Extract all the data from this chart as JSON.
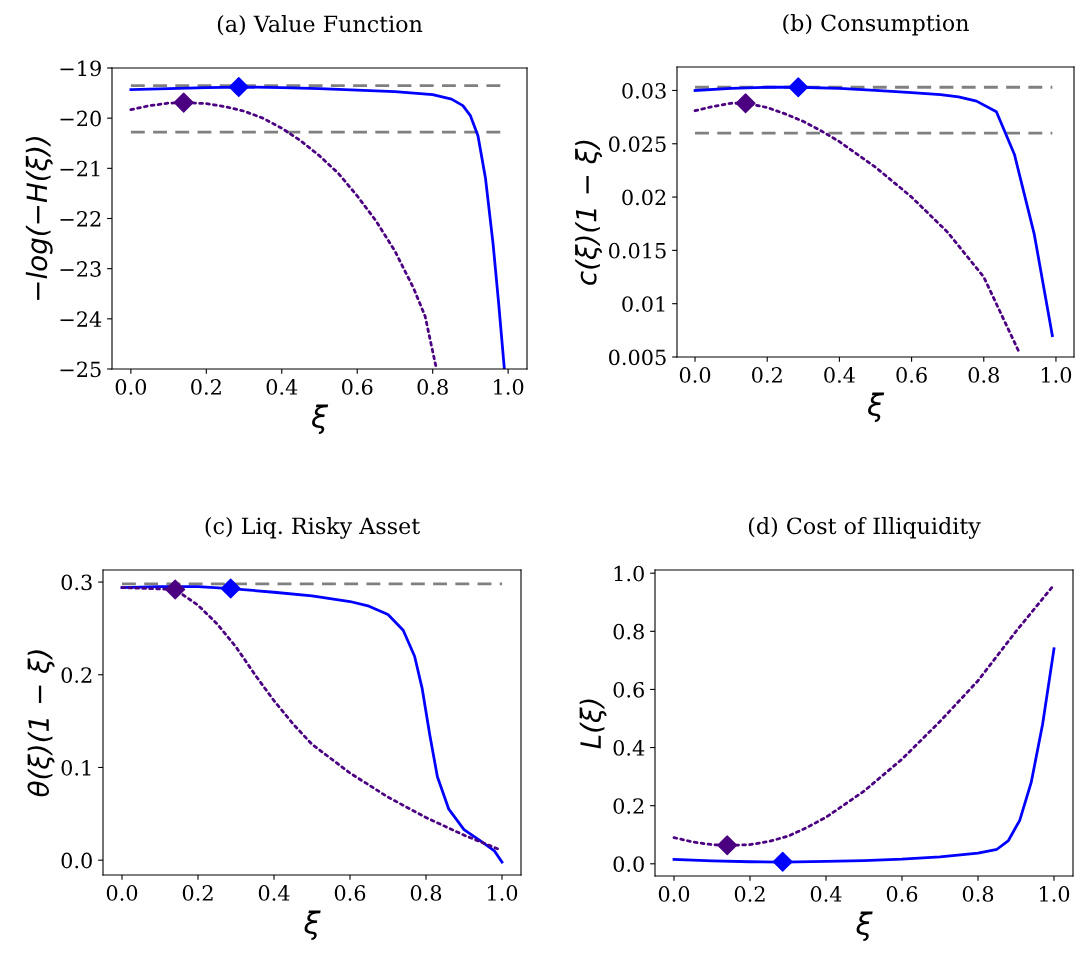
{
  "chart_data": [
    {
      "type": "line",
      "title": "(a) Value Function",
      "xlabel": "ξ",
      "ylabel": "−log(−H(ξ))",
      "xlim": [
        -0.05,
        1.05
      ],
      "ylim": [
        -25,
        -19
      ],
      "xticks": [
        {
          "value": 0,
          "label": "0.0"
        },
        {
          "value": 0.2,
          "label": "0.2"
        },
        {
          "value": 0.4,
          "label": "0.4"
        },
        {
          "value": 0.6,
          "label": "0.6"
        },
        {
          "value": 0.8,
          "label": "0.8"
        },
        {
          "value": 1,
          "label": "1.0"
        }
      ],
      "yticks": [
        {
          "value": -25,
          "label": "−25"
        },
        {
          "value": -24,
          "label": "−24"
        },
        {
          "value": -23,
          "label": "−23"
        },
        {
          "value": -22,
          "label": "−22"
        },
        {
          "value": -21,
          "label": "−21"
        },
        {
          "value": -20,
          "label": "−20"
        },
        {
          "value": -19,
          "label": "−19"
        }
      ],
      "ref_lines": [
        {
          "axis": "y",
          "value": -19.35,
          "color": "#808080",
          "line_style": "dashed"
        },
        {
          "axis": "y",
          "value": -20.28,
          "color": "#808080",
          "line_style": "dashed"
        }
      ],
      "series": [
        {
          "type": "line",
          "color": "#0000ff",
          "line_style": "solid",
          "x": [
            0,
            0.1,
            0.2,
            0.29,
            0.4,
            0.5,
            0.6,
            0.7,
            0.8,
            0.85,
            0.88,
            0.9,
            0.92,
            0.94,
            0.96,
            0.975,
            0.99
          ],
          "values": [
            -19.43,
            -19.41,
            -19.39,
            -19.38,
            -19.39,
            -19.41,
            -19.44,
            -19.47,
            -19.53,
            -19.62,
            -19.75,
            -19.95,
            -20.35,
            -21.2,
            -22.5,
            -23.7,
            -25.0
          ]
        },
        {
          "type": "line",
          "color": "#4b0082",
          "line_style": "dotted",
          "x": [
            0,
            0.05,
            0.1,
            0.15,
            0.2,
            0.25,
            0.3,
            0.35,
            0.4,
            0.45,
            0.5,
            0.55,
            0.6,
            0.65,
            0.7,
            0.75,
            0.78,
            0.81
          ],
          "values": [
            -19.83,
            -19.75,
            -19.7,
            -19.69,
            -19.71,
            -19.77,
            -19.86,
            -20.0,
            -20.2,
            -20.45,
            -20.75,
            -21.1,
            -21.55,
            -22.05,
            -22.65,
            -23.4,
            -23.95,
            -25.0
          ]
        },
        {
          "type": "scatter",
          "color": "#4b0082",
          "marker": "diamond",
          "x": [
            0.14
          ],
          "values": [
            -19.69
          ]
        },
        {
          "type": "scatter",
          "color": "#0000ff",
          "marker": "diamond",
          "x": [
            0.286
          ],
          "values": [
            -19.38
          ]
        }
      ]
    },
    {
      "type": "line",
      "title": "(b) Consumption",
      "xlabel": "ξ",
      "ylabel": "c(ξ)(1 − ξ)",
      "xlim": [
        -0.05,
        1.05
      ],
      "ylim": [
        0.005,
        0.0322
      ],
      "xticks": [
        {
          "value": 0,
          "label": "0.0"
        },
        {
          "value": 0.2,
          "label": "0.2"
        },
        {
          "value": 0.4,
          "label": "0.4"
        },
        {
          "value": 0.6,
          "label": "0.6"
        },
        {
          "value": 0.8,
          "label": "0.8"
        },
        {
          "value": 1,
          "label": "1.0"
        }
      ],
      "yticks": [
        0.005,
        0.01,
        0.015,
        0.02,
        0.025,
        0.03
      ],
      "ref_lines": [
        {
          "axis": "y",
          "value": 0.0303,
          "color": "#808080",
          "line_style": "dashed"
        },
        {
          "axis": "y",
          "value": 0.026,
          "color": "#808080",
          "line_style": "dashed"
        }
      ],
      "series": [
        {
          "type": "line",
          "color": "#0000ff",
          "line_style": "solid",
          "x": [
            0,
            0.1,
            0.2,
            0.286,
            0.4,
            0.5,
            0.6,
            0.68,
            0.73,
            0.78,
            0.835,
            0.885,
            0.94,
            0.99
          ],
          "values": [
            0.03,
            0.0302,
            0.0303,
            0.0303,
            0.0302,
            0.03,
            0.0298,
            0.0296,
            0.0294,
            0.029,
            0.028,
            0.024,
            0.0165,
            0.007
          ]
        },
        {
          "type": "line",
          "color": "#4b0082",
          "line_style": "dotted",
          "x": [
            0,
            0.05,
            0.1,
            0.14,
            0.2,
            0.25,
            0.3,
            0.35,
            0.4,
            0.5,
            0.6,
            0.7,
            0.8,
            0.9
          ],
          "values": [
            0.0281,
            0.0285,
            0.0288,
            0.0288,
            0.0284,
            0.0278,
            0.0271,
            0.0262,
            0.0252,
            0.0228,
            0.02,
            0.0167,
            0.0125,
            0.0053
          ]
        },
        {
          "type": "scatter",
          "color": "#4b0082",
          "marker": "diamond",
          "x": [
            0.14
          ],
          "values": [
            0.0288
          ]
        },
        {
          "type": "scatter",
          "color": "#0000ff",
          "marker": "diamond",
          "x": [
            0.286
          ],
          "values": [
            0.0303
          ]
        }
      ]
    },
    {
      "type": "line",
      "title": "(c) Liq. Risky Asset",
      "xlabel": "ξ",
      "ylabel": "θ(ξ)(1 − ξ)",
      "xlim": [
        -0.05,
        1.05
      ],
      "ylim": [
        -0.016,
        0.313
      ],
      "xticks": [
        {
          "value": 0,
          "label": "0.0"
        },
        {
          "value": 0.2,
          "label": "0.2"
        },
        {
          "value": 0.4,
          "label": "0.4"
        },
        {
          "value": 0.6,
          "label": "0.6"
        },
        {
          "value": 0.8,
          "label": "0.8"
        },
        {
          "value": 1,
          "label": "1.0"
        }
      ],
      "yticks": [
        {
          "value": 0,
          "label": "0.0"
        },
        0.1,
        0.2,
        0.3
      ],
      "ref_lines": [
        {
          "axis": "y",
          "value": 0.298,
          "color": "#808080",
          "line_style": "dashed"
        }
      ],
      "series": [
        {
          "type": "line",
          "color": "#0000ff",
          "line_style": "solid",
          "x": [
            0,
            0.1,
            0.2,
            0.286,
            0.4,
            0.5,
            0.6,
            0.65,
            0.7,
            0.74,
            0.77,
            0.79,
            0.81,
            0.83,
            0.86,
            0.9,
            0.95,
            0.98,
            1.0
          ],
          "values": [
            0.294,
            0.295,
            0.295,
            0.293,
            0.289,
            0.285,
            0.279,
            0.274,
            0.265,
            0.248,
            0.22,
            0.185,
            0.135,
            0.09,
            0.055,
            0.033,
            0.019,
            0.01,
            -0.002
          ]
        },
        {
          "type": "line",
          "color": "#4b0082",
          "line_style": "dotted",
          "x": [
            0,
            0.14,
            0.2,
            0.25,
            0.3,
            0.35,
            0.4,
            0.45,
            0.5,
            0.6,
            0.7,
            0.8,
            0.9,
            0.99
          ],
          "values": [
            0.294,
            0.292,
            0.275,
            0.255,
            0.23,
            0.2,
            0.172,
            0.147,
            0.125,
            0.094,
            0.068,
            0.046,
            0.027,
            0.012
          ]
        },
        {
          "type": "scatter",
          "color": "#4b0082",
          "marker": "diamond",
          "x": [
            0.14
          ],
          "values": [
            0.292
          ]
        },
        {
          "type": "scatter",
          "color": "#0000ff",
          "marker": "diamond",
          "x": [
            0.286
          ],
          "values": [
            0.293
          ]
        }
      ]
    },
    {
      "type": "line",
      "title": "(d) Cost of Illiquidity",
      "xlabel": "ξ",
      "ylabel": "L(ξ)",
      "xlim": [
        -0.05,
        1.05
      ],
      "ylim": [
        -0.042,
        1.011
      ],
      "xticks": [
        {
          "value": 0,
          "label": "0.0"
        },
        {
          "value": 0.2,
          "label": "0.2"
        },
        {
          "value": 0.4,
          "label": "0.4"
        },
        {
          "value": 0.6,
          "label": "0.6"
        },
        {
          "value": 0.8,
          "label": "0.8"
        },
        {
          "value": 1,
          "label": "1.0"
        }
      ],
      "yticks": [
        {
          "value": 0,
          "label": "0.0"
        },
        0.2,
        0.4,
        0.6,
        0.8,
        {
          "value": 1,
          "label": "1.0"
        }
      ],
      "series": [
        {
          "type": "line",
          "color": "#0000ff",
          "line_style": "solid",
          "x": [
            0,
            0.1,
            0.2,
            0.286,
            0.4,
            0.5,
            0.6,
            0.7,
            0.8,
            0.85,
            0.88,
            0.91,
            0.94,
            0.97,
            1.0
          ],
          "values": [
            0.015,
            0.01,
            0.007,
            0.006,
            0.008,
            0.011,
            0.016,
            0.024,
            0.037,
            0.05,
            0.08,
            0.15,
            0.28,
            0.48,
            0.74
          ]
        },
        {
          "type": "line",
          "color": "#4b0082",
          "line_style": "dotted",
          "x": [
            0,
            0.05,
            0.1,
            0.14,
            0.2,
            0.25,
            0.3,
            0.35,
            0.4,
            0.5,
            0.6,
            0.7,
            0.8,
            0.9,
            1.0
          ],
          "values": [
            0.09,
            0.075,
            0.066,
            0.063,
            0.066,
            0.077,
            0.095,
            0.125,
            0.16,
            0.25,
            0.36,
            0.49,
            0.63,
            0.8,
            0.96
          ]
        },
        {
          "type": "scatter",
          "color": "#4b0082",
          "marker": "diamond",
          "x": [
            0.14
          ],
          "values": [
            0.064
          ]
        },
        {
          "type": "scatter",
          "color": "#0000ff",
          "marker": "diamond",
          "x": [
            0.286
          ],
          "values": [
            0.007
          ]
        }
      ]
    }
  ]
}
